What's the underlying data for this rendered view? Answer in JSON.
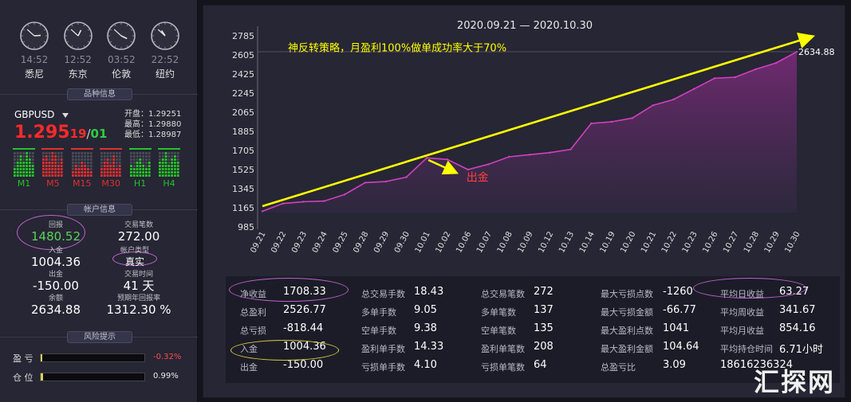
{
  "clocks": [
    {
      "time": "14:52",
      "city": "悉尼",
      "hour": 14,
      "minute": 52
    },
    {
      "time": "12:52",
      "city": "东京",
      "hour": 12,
      "minute": 52
    },
    {
      "time": "03:52",
      "city": "伦敦",
      "hour": 3,
      "minute": 52
    },
    {
      "time": "22:52",
      "city": "纽约",
      "hour": 22,
      "minute": 52
    }
  ],
  "section_titles": {
    "instrument": "品种信息",
    "account": "帐户信息",
    "risk": "风险提示"
  },
  "instrument": {
    "symbol": "GBPUSD",
    "price_main": "1.295",
    "price_small": "19",
    "price_sep": "/",
    "price_ask": "01",
    "open": "开盘：1.29251",
    "high": "最高：1.29880",
    "low": "最低：1.28987",
    "timeframes": [
      {
        "label": "M1",
        "color": "#27c227",
        "levels": [
          3,
          5,
          7,
          5,
          8,
          6,
          4
        ]
      },
      {
        "label": "M5",
        "color": "#e03030",
        "levels": [
          6,
          7,
          5,
          8,
          7,
          4,
          6
        ]
      },
      {
        "label": "M15",
        "color": "#e03030",
        "levels": [
          2,
          4,
          3,
          5,
          4,
          3,
          2
        ]
      },
      {
        "label": "M30",
        "color": "#e03030",
        "levels": [
          3,
          5,
          6,
          4,
          7,
          3,
          4
        ]
      },
      {
        "label": "H1",
        "color": "#27c227",
        "levels": [
          4,
          3,
          5,
          6,
          4,
          3,
          5
        ]
      },
      {
        "label": "H4",
        "color": "#27c227",
        "levels": [
          5,
          6,
          8,
          4,
          6,
          7,
          5
        ]
      }
    ]
  },
  "account": {
    "return_label": "回报",
    "return_value": "1480.52",
    "trades_label": "交易笔数",
    "trades_value": "272.00",
    "deposit_label": "入金",
    "deposit_value": "1004.36",
    "type_label": "帐户类型",
    "type_value": "真实",
    "withdraw_label": "出金",
    "withdraw_value": "-150.00",
    "days_label": "交易时间",
    "days_value": "41 天",
    "balance_label": "余额",
    "balance_value": "2634.88",
    "annual_label": "预期年回报率",
    "annual_value": "1312.30 %"
  },
  "risk": {
    "pnl_label": "盈  亏",
    "pnl_value": "-0.32%",
    "pnl_fraction": 0.0032,
    "pos_label": "仓  位",
    "pos_value": "0.99%",
    "pos_fraction": 0.0099
  },
  "date_range": "2020.09.21 — 2020.10.30",
  "chart_data": {
    "type": "area",
    "title": "",
    "annotation_strategy": "神反转策略，月盈利100%做单成功率大于70%",
    "annotation_withdraw": "出金",
    "last_value_label": "2634.88",
    "y_ticks": [
      "2785",
      "2605",
      "2425",
      "2245",
      "2065",
      "1885",
      "1705",
      "1525",
      "1345",
      "1165",
      "985"
    ],
    "ylim": [
      985,
      2785
    ],
    "x_labels": [
      "09.21",
      "09.22",
      "09.23",
      "09.24",
      "09.25",
      "09.28",
      "09.29",
      "09.30",
      "10.01",
      "10.02",
      "10.06",
      "10.07",
      "10.08",
      "10.09",
      "10.12",
      "10.13",
      "10.14",
      "10.19",
      "10.20",
      "10.21",
      "10.22",
      "10.23",
      "10.26",
      "10.27",
      "10.28",
      "10.29",
      "10.30"
    ],
    "series": [
      {
        "name": "",
        "values": [
          1132,
          1205,
          1222,
          1228,
          1290,
          1402,
          1412,
          1453,
          1635,
          1620,
          1525,
          1575,
          1645,
          1665,
          1685,
          1715,
          1960,
          1975,
          2010,
          2130,
          2185,
          2285,
          2385,
          2395,
          2470,
          2530,
          2634.88
        ]
      }
    ],
    "colors": {
      "line": "#d040c0",
      "fill_top": "#7a2a78",
      "fill_bottom": "#332a44",
      "arrow": "#ffff00",
      "annotation_red": "#ff4040"
    }
  },
  "stats": [
    [
      {
        "k": "净收益",
        "v": "1708.33"
      },
      {
        "k": "总盈利",
        "v": "2526.77"
      },
      {
        "k": "总亏损",
        "v": "-818.44"
      },
      {
        "k": "入金",
        "v": "1004.36"
      },
      {
        "k": "出金",
        "v": "-150.00"
      }
    ],
    [
      {
        "k": "总交易手数",
        "v": "18.43"
      },
      {
        "k": "多单手数",
        "v": "9.05"
      },
      {
        "k": "空单手数",
        "v": "9.38"
      },
      {
        "k": "盈利单手数",
        "v": "14.33"
      },
      {
        "k": "亏损单手数",
        "v": "4.10"
      }
    ],
    [
      {
        "k": "总交易笔数",
        "v": "272"
      },
      {
        "k": "多单笔数",
        "v": "137"
      },
      {
        "k": "空单笔数",
        "v": "135"
      },
      {
        "k": "盈利单笔数",
        "v": "208"
      },
      {
        "k": "亏损单笔数",
        "v": "64"
      }
    ],
    [
      {
        "k": "最大亏损点数",
        "v": "-1260"
      },
      {
        "k": "最大亏损金额",
        "v": "-66.77"
      },
      {
        "k": "最大盈利点数",
        "v": "1041"
      },
      {
        "k": "最大盈利金额",
        "v": "104.64"
      },
      {
        "k": "总盈亏比",
        "v": "3.09"
      }
    ],
    [
      {
        "k": "平均日收益",
        "v": "63.27"
      },
      {
        "k": "平均周收益",
        "v": "341.67"
      },
      {
        "k": "平均月收益",
        "v": "854.16"
      },
      {
        "k": "平均持仓时间",
        "v": "6.71小时"
      },
      {
        "k": "",
        "v": "18616236324"
      }
    ]
  ],
  "watermark": "汇探网"
}
